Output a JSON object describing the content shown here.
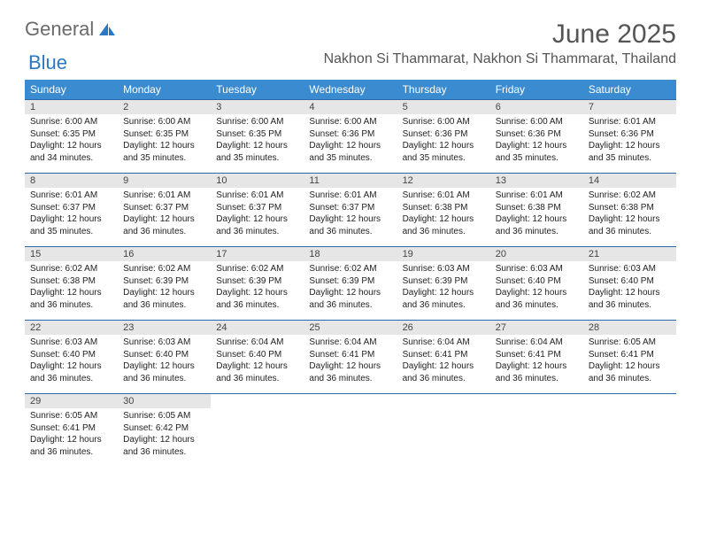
{
  "logo": {
    "text1": "General",
    "text2": "Blue"
  },
  "header": {
    "month_title": "June 2025",
    "location": "Nakhon Si Thammarat, Nakhon Si Thammarat, Thailand"
  },
  "colors": {
    "header_bg": "#3b8bd0",
    "header_text": "#ffffff",
    "daynum_bg": "#e6e6e6",
    "row_border": "#2b6aa8",
    "logo_gray": "#6a6a6a",
    "logo_blue": "#2b78c2"
  },
  "weekdays": [
    "Sunday",
    "Monday",
    "Tuesday",
    "Wednesday",
    "Thursday",
    "Friday",
    "Saturday"
  ],
  "weeks": [
    [
      {
        "n": "1",
        "sr": "6:00 AM",
        "ss": "6:35 PM",
        "dl": "12 hours and 34 minutes."
      },
      {
        "n": "2",
        "sr": "6:00 AM",
        "ss": "6:35 PM",
        "dl": "12 hours and 35 minutes."
      },
      {
        "n": "3",
        "sr": "6:00 AM",
        "ss": "6:35 PM",
        "dl": "12 hours and 35 minutes."
      },
      {
        "n": "4",
        "sr": "6:00 AM",
        "ss": "6:36 PM",
        "dl": "12 hours and 35 minutes."
      },
      {
        "n": "5",
        "sr": "6:00 AM",
        "ss": "6:36 PM",
        "dl": "12 hours and 35 minutes."
      },
      {
        "n": "6",
        "sr": "6:00 AM",
        "ss": "6:36 PM",
        "dl": "12 hours and 35 minutes."
      },
      {
        "n": "7",
        "sr": "6:01 AM",
        "ss": "6:36 PM",
        "dl": "12 hours and 35 minutes."
      }
    ],
    [
      {
        "n": "8",
        "sr": "6:01 AM",
        "ss": "6:37 PM",
        "dl": "12 hours and 35 minutes."
      },
      {
        "n": "9",
        "sr": "6:01 AM",
        "ss": "6:37 PM",
        "dl": "12 hours and 36 minutes."
      },
      {
        "n": "10",
        "sr": "6:01 AM",
        "ss": "6:37 PM",
        "dl": "12 hours and 36 minutes."
      },
      {
        "n": "11",
        "sr": "6:01 AM",
        "ss": "6:37 PM",
        "dl": "12 hours and 36 minutes."
      },
      {
        "n": "12",
        "sr": "6:01 AM",
        "ss": "6:38 PM",
        "dl": "12 hours and 36 minutes."
      },
      {
        "n": "13",
        "sr": "6:01 AM",
        "ss": "6:38 PM",
        "dl": "12 hours and 36 minutes."
      },
      {
        "n": "14",
        "sr": "6:02 AM",
        "ss": "6:38 PM",
        "dl": "12 hours and 36 minutes."
      }
    ],
    [
      {
        "n": "15",
        "sr": "6:02 AM",
        "ss": "6:38 PM",
        "dl": "12 hours and 36 minutes."
      },
      {
        "n": "16",
        "sr": "6:02 AM",
        "ss": "6:39 PM",
        "dl": "12 hours and 36 minutes."
      },
      {
        "n": "17",
        "sr": "6:02 AM",
        "ss": "6:39 PM",
        "dl": "12 hours and 36 minutes."
      },
      {
        "n": "18",
        "sr": "6:02 AM",
        "ss": "6:39 PM",
        "dl": "12 hours and 36 minutes."
      },
      {
        "n": "19",
        "sr": "6:03 AM",
        "ss": "6:39 PM",
        "dl": "12 hours and 36 minutes."
      },
      {
        "n": "20",
        "sr": "6:03 AM",
        "ss": "6:40 PM",
        "dl": "12 hours and 36 minutes."
      },
      {
        "n": "21",
        "sr": "6:03 AM",
        "ss": "6:40 PM",
        "dl": "12 hours and 36 minutes."
      }
    ],
    [
      {
        "n": "22",
        "sr": "6:03 AM",
        "ss": "6:40 PM",
        "dl": "12 hours and 36 minutes."
      },
      {
        "n": "23",
        "sr": "6:03 AM",
        "ss": "6:40 PM",
        "dl": "12 hours and 36 minutes."
      },
      {
        "n": "24",
        "sr": "6:04 AM",
        "ss": "6:40 PM",
        "dl": "12 hours and 36 minutes."
      },
      {
        "n": "25",
        "sr": "6:04 AM",
        "ss": "6:41 PM",
        "dl": "12 hours and 36 minutes."
      },
      {
        "n": "26",
        "sr": "6:04 AM",
        "ss": "6:41 PM",
        "dl": "12 hours and 36 minutes."
      },
      {
        "n": "27",
        "sr": "6:04 AM",
        "ss": "6:41 PM",
        "dl": "12 hours and 36 minutes."
      },
      {
        "n": "28",
        "sr": "6:05 AM",
        "ss": "6:41 PM",
        "dl": "12 hours and 36 minutes."
      }
    ],
    [
      {
        "n": "29",
        "sr": "6:05 AM",
        "ss": "6:41 PM",
        "dl": "12 hours and 36 minutes."
      },
      {
        "n": "30",
        "sr": "6:05 AM",
        "ss": "6:42 PM",
        "dl": "12 hours and 36 minutes."
      },
      null,
      null,
      null,
      null,
      null
    ]
  ],
  "labels": {
    "sunrise": "Sunrise:",
    "sunset": "Sunset:",
    "daylight": "Daylight:"
  }
}
